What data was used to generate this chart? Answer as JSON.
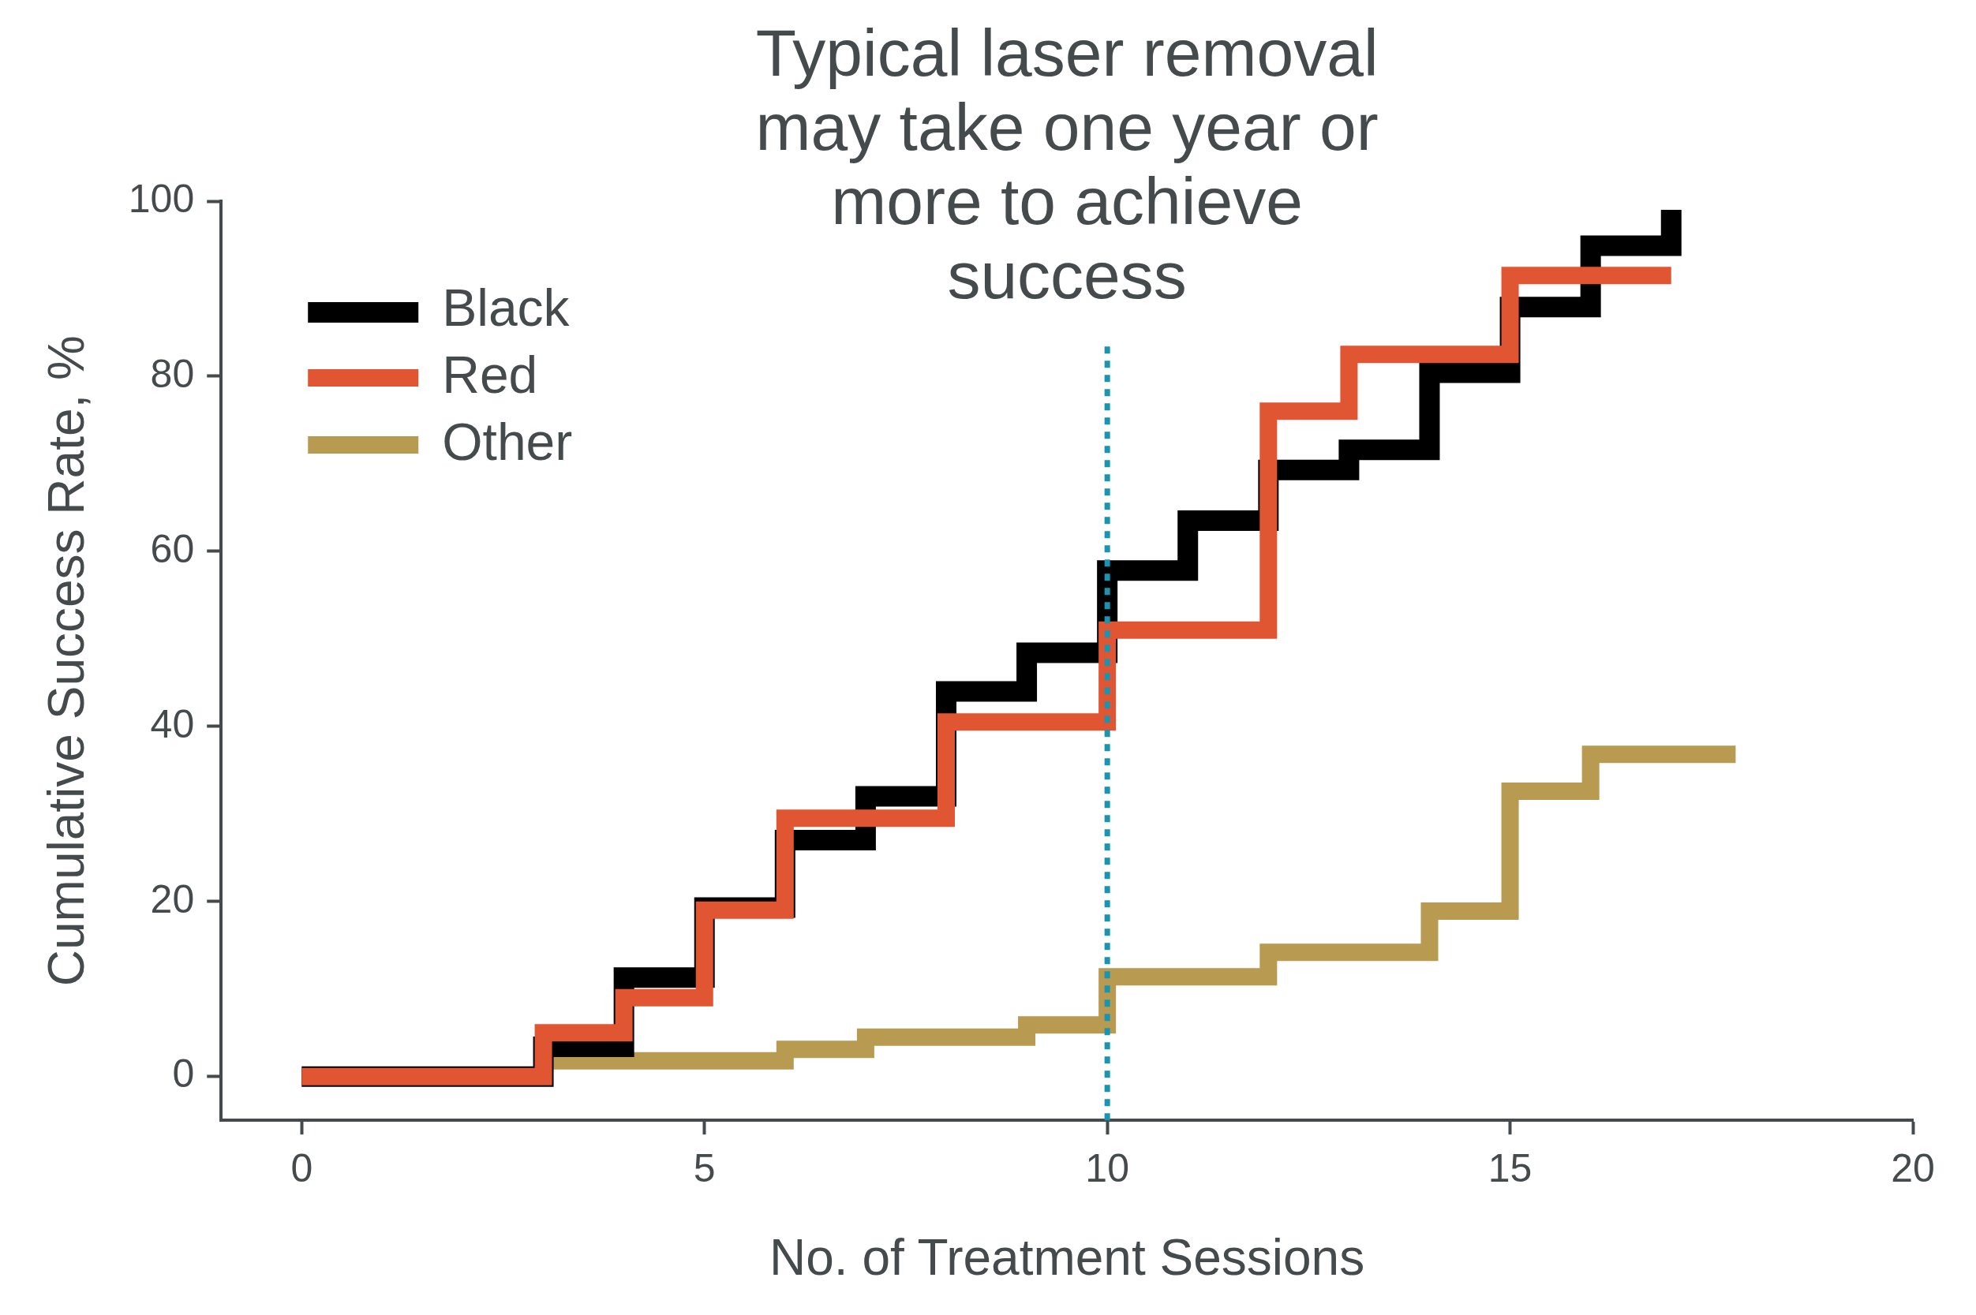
{
  "chart_data": {
    "type": "step",
    "title": "Typical laser removal may take one year or more to achieve success",
    "xlabel": "No. of Treatment Sessions",
    "ylabel": "Cumulative Success Rate, %",
    "xlim": [
      -1,
      20
    ],
    "xticks": [
      0,
      5,
      10,
      15,
      20
    ],
    "ylim": [
      -5,
      100
    ],
    "yticks": [
      0,
      20,
      40,
      60,
      80,
      100
    ],
    "grid": false,
    "legend": "top left",
    "marker": "none",
    "line_style": "solid",
    "ref_lines": [
      {
        "axis": "x",
        "value": 10,
        "color": "#1a95b1",
        "line_style": "dotted"
      }
    ],
    "series": [
      {
        "name": "Red",
        "color": "#e05532",
        "x": [
          0,
          3,
          4,
          5,
          6,
          8,
          10,
          12,
          13,
          15,
          17
        ],
        "values": [
          0,
          5,
          9,
          19,
          29.5,
          40.5,
          51,
          76,
          82.5,
          91.5,
          91.5
        ]
      },
      {
        "name": "Black",
        "color": "#000000",
        "x": [
          0,
          3,
          4,
          5,
          6,
          7,
          8,
          9,
          10,
          11,
          12,
          13,
          14,
          15,
          16,
          17
        ],
        "values": [
          0,
          3.4,
          11.3,
          19.3,
          27,
          32,
          44,
          48.4,
          57.8,
          63.5,
          69.3,
          71.6,
          80.4,
          87.9,
          94.9,
          99
        ]
      },
      {
        "name": "Other",
        "color": "#b89a50",
        "x": [
          0,
          3,
          6,
          7,
          9,
          10,
          12,
          14,
          15,
          16,
          17.8
        ],
        "values": [
          0,
          1.8,
          3.1,
          4.5,
          5.9,
          11.4,
          14.2,
          18.9,
          32.6,
          36.8,
          36.8
        ]
      }
    ]
  }
}
